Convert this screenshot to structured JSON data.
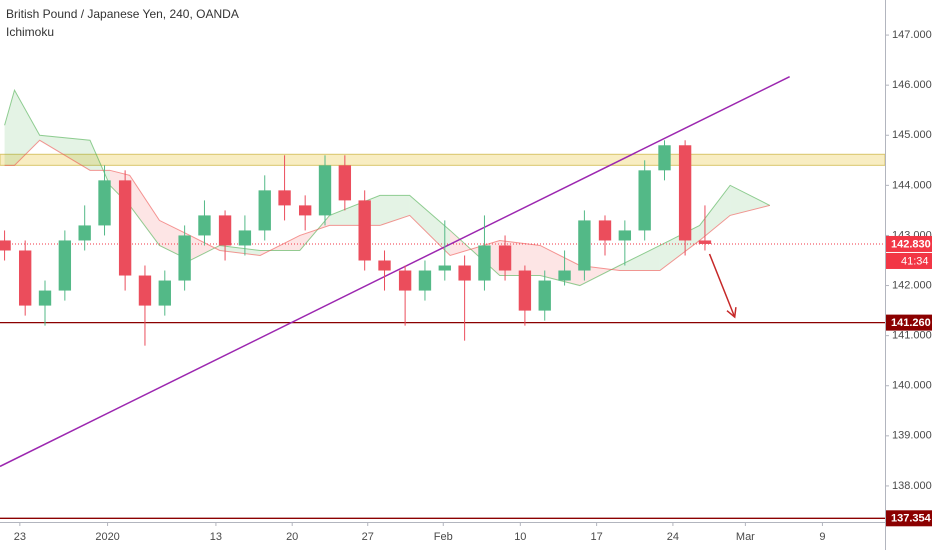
{
  "chart_data": {
    "type": "candlestick",
    "title": "British Pound / Japanese Yen, 240, OANDA",
    "subtitle": "Ichimoku",
    "x": [
      -0.2,
      0.07,
      0.33,
      0.59,
      0.85,
      1.11,
      1.38,
      1.64,
      1.9,
      2.16,
      2.42,
      2.69,
      2.95,
      3.21,
      3.47,
      3.74,
      4.0,
      4.26,
      4.52,
      4.78,
      5.05,
      5.31,
      5.57,
      5.83,
      6.09,
      6.36,
      6.62,
      6.88,
      7.14,
      7.4,
      7.67,
      7.93,
      8.19,
      8.45,
      8.72,
      8.98
    ],
    "open": [
      142.9,
      142.7,
      141.6,
      141.9,
      142.9,
      143.2,
      144.1,
      142.2,
      141.6,
      142.1,
      143.0,
      143.4,
      142.8,
      143.1,
      143.9,
      143.6,
      143.4,
      144.4,
      143.7,
      142.5,
      142.3,
      141.9,
      142.3,
      142.4,
      142.1,
      142.8,
      142.3,
      141.5,
      142.1,
      142.3,
      143.3,
      142.9,
      143.1,
      144.3,
      144.8,
      142.9
    ],
    "high": [
      143.1,
      142.9,
      142.1,
      143.1,
      143.6,
      144.4,
      144.3,
      142.4,
      142.3,
      143.2,
      143.7,
      143.5,
      143.4,
      144.2,
      144.6,
      143.8,
      144.6,
      144.6,
      143.9,
      142.7,
      142.4,
      142.5,
      143.3,
      142.6,
      143.4,
      143.0,
      142.4,
      142.3,
      142.7,
      143.5,
      143.4,
      143.3,
      144.5,
      144.9,
      144.9,
      143.6
    ],
    "low": [
      142.5,
      141.4,
      141.2,
      141.7,
      142.7,
      143.0,
      141.9,
      140.8,
      141.4,
      141.9,
      142.8,
      142.5,
      142.6,
      142.9,
      143.3,
      143.1,
      143.2,
      143.5,
      142.3,
      141.9,
      141.2,
      141.7,
      142.1,
      140.9,
      141.9,
      142.1,
      141.2,
      141.3,
      142.0,
      142.1,
      142.6,
      142.4,
      142.9,
      144.1,
      142.6,
      142.7
    ],
    "close": [
      142.7,
      141.6,
      141.9,
      142.9,
      143.2,
      144.1,
      142.2,
      141.6,
      142.1,
      143.0,
      143.4,
      142.8,
      143.1,
      143.9,
      143.6,
      143.4,
      144.4,
      143.7,
      142.5,
      142.3,
      141.9,
      142.3,
      142.4,
      142.1,
      142.8,
      142.3,
      141.5,
      142.1,
      142.3,
      143.3,
      142.9,
      143.1,
      144.3,
      144.8,
      142.9,
      142.83
    ],
    "up_color": "#53b987",
    "down_color": "#eb4d5c",
    "cloud": {
      "x": [
        -0.2,
        -0.07,
        0.26,
        0.92,
        1.18,
        1.44,
        1.83,
        2.23,
        2.62,
        3.15,
        3.67,
        4.06,
        4.72,
        5.11,
        5.64,
        6.29,
        6.82,
        7.34,
        7.86,
        8.39,
        8.91,
        9.31,
        9.83
      ],
      "span_a": [
        145.2,
        145.9,
        145.0,
        144.9,
        144.0,
        143.6,
        142.8,
        142.5,
        142.8,
        142.7,
        142.7,
        143.4,
        143.8,
        143.8,
        143.1,
        142.2,
        142.2,
        142.0,
        142.4,
        142.8,
        143.2,
        144.0,
        143.6
      ],
      "span_b": [
        144.4,
        144.4,
        144.9,
        144.3,
        144.3,
        144.2,
        143.3,
        143.0,
        142.7,
        142.6,
        143.0,
        143.2,
        143.2,
        143.4,
        142.6,
        142.9,
        142.8,
        142.4,
        142.3,
        142.3,
        142.9,
        143.4,
        143.6
      ],
      "up_color": "#4caf50",
      "down_color": "#ef5350"
    },
    "zone": {
      "range": [
        144.4,
        144.62
      ],
      "color": "#f5e6a8"
    },
    "levels": [
      {
        "value": 142.83,
        "label": "142.830",
        "color": "#f23645",
        "style": "dotted"
      },
      {
        "value": 141.26,
        "label": "141.260",
        "color": "#8b0000",
        "style": "solid"
      },
      {
        "value": 137.354,
        "label": "137.354",
        "color": "#8b0000",
        "style": "solid"
      }
    ],
    "countdown": "41:34",
    "trend_line": {
      "x": [
        -0.26,
        10.09
      ],
      "y": [
        138.39,
        146.17
      ],
      "color": "#9c27b0"
    },
    "arrow": {
      "x": [
        9.04,
        9.37
      ],
      "y": [
        142.63,
        141.37
      ],
      "color": "#c62828"
    },
    "xlim": [
      -0.26,
      11.34
    ],
    "xticks": [
      {
        "value": 0,
        "label": "23"
      },
      {
        "value": 1.15,
        "label": "2020"
      },
      {
        "value": 2.57,
        "label": "13"
      },
      {
        "value": 3.57,
        "label": "20"
      },
      {
        "value": 4.56,
        "label": "27"
      },
      {
        "value": 5.55,
        "label": "Feb"
      },
      {
        "value": 6.56,
        "label": "10"
      },
      {
        "value": 7.56,
        "label": "17"
      },
      {
        "value": 8.56,
        "label": "24"
      },
      {
        "value": 9.51,
        "label": "Mar"
      },
      {
        "value": 10.52,
        "label": "9"
      }
    ],
    "ylim": [
      137.28,
      147.7
    ],
    "yticks": [
      {
        "value": 138,
        "label": "138.000"
      },
      {
        "value": 139,
        "label": "139.000"
      },
      {
        "value": 140,
        "label": "140.000"
      },
      {
        "value": 141,
        "label": "141.000"
      },
      {
        "value": 142,
        "label": "142.000"
      },
      {
        "value": 143,
        "label": "143.000"
      },
      {
        "value": 144,
        "label": "144.000"
      },
      {
        "value": 145,
        "label": "145.000"
      },
      {
        "value": 146,
        "label": "146.000"
      },
      {
        "value": 147,
        "label": "147.000"
      }
    ]
  }
}
